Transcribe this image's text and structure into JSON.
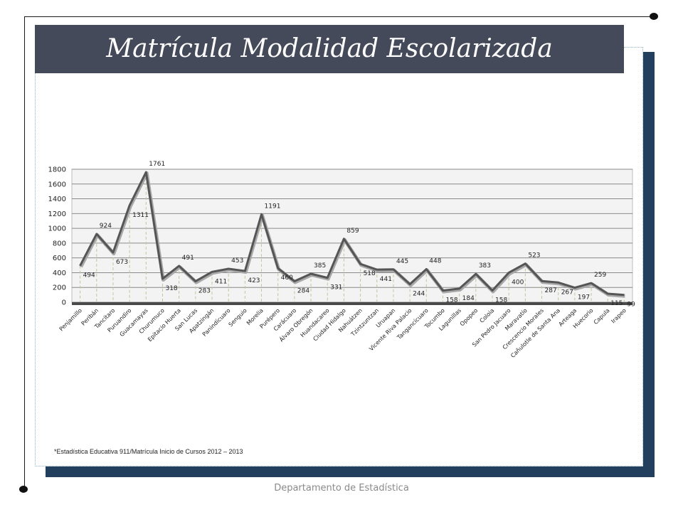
{
  "slide": {
    "title": "Matrícula Modalidad Escolarizada",
    "footnote": "*Estadística Educativa 911/Matrícula Inicio de Cursos 2012 – 2013",
    "footer": "Departamento de Estadística"
  },
  "colors": {
    "title_bar": "#454a5a",
    "frame": "#22405e",
    "line": "#555555"
  },
  "chart_data": {
    "type": "line",
    "ylim": [
      0,
      1800
    ],
    "yticks": [
      0,
      200,
      400,
      600,
      800,
      1000,
      1200,
      1400,
      1600,
      1800
    ],
    "grid": true,
    "categories": [
      "Penjamillo",
      "Peribán",
      "Tancítaro",
      "Puruandiro",
      "Guacamayas",
      "Churumuco",
      "Epitacio Huerta",
      "San Lucas",
      "Apatzingán",
      "Panindícuaro",
      "Senguio",
      "Morelia",
      "Purépero",
      "Carácuaro",
      "Álvaro Obregón",
      "Huandacareo",
      "Ciudad Hidalgo",
      "Nahuátzen",
      "Tzintzuntzan",
      "Uruapan",
      "Vicente Riva Palacio",
      "Tangancícuaro",
      "Tocumbo",
      "Lagunillas",
      "Opopeo",
      "Coloia",
      "San Pedro Jacuaro",
      "Maravatío",
      "Crescencio Morales",
      "Cañulotle de Santa Ana",
      "Arteaga",
      "Huecorio",
      "Capula",
      "Irapeo"
    ],
    "values": [
      494,
      924,
      673,
      1311,
      1761,
      318,
      491,
      283,
      411,
      453,
      423,
      1191,
      460,
      284,
      385,
      331,
      859,
      518,
      441,
      445,
      244,
      448,
      158,
      184,
      383,
      158,
      400,
      523,
      287,
      267,
      197,
      259,
      115,
      99
    ]
  }
}
